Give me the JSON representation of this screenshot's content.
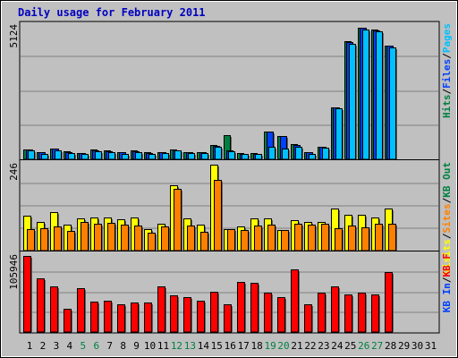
{
  "colors": {
    "background": "#C0C0C0",
    "frame_light": "#FFFFFF",
    "frame_dark": "#808080",
    "grid": "#808080",
    "title": "#0000C0",
    "hits": "#008040",
    "files": "#0040FF",
    "pages": "#00C0FF",
    "visits": "#FFFF00",
    "sites": "#FF8000",
    "kb_out": "#008040",
    "kb_in": "#0040FF",
    "kb_f": "#FF0000",
    "day_weekday": "#000000",
    "day_weekend": "#008040",
    "separator": "#000000"
  },
  "chart_data": {
    "type": "bar",
    "title": "Daily usage for February 2011",
    "categories": [
      "1",
      "2",
      "3",
      "4",
      "5",
      "6",
      "7",
      "8",
      "9",
      "10",
      "11",
      "12",
      "13",
      "14",
      "15",
      "16",
      "17",
      "18",
      "19",
      "20",
      "21",
      "22",
      "23",
      "24",
      "25",
      "26",
      "27",
      "28",
      "29",
      "30",
      "31"
    ],
    "weekend_days": [
      "5",
      "6",
      "12",
      "13",
      "19",
      "20",
      "26",
      "27"
    ],
    "panels": [
      {
        "id": "top",
        "max_label": "5124",
        "ymax": 5124,
        "legend": [
          {
            "text": "Hits",
            "color_key": "hits"
          },
          {
            "text": "/",
            "color_key": "separator"
          },
          {
            "text": "Files",
            "color_key": "files"
          },
          {
            "text": "/",
            "color_key": "separator"
          },
          {
            "text": "Pages",
            "color_key": "pages"
          }
        ],
        "series": [
          {
            "name": "Hits",
            "color_key": "hits",
            "values": [
              390,
              280,
              420,
              300,
              250,
              380,
              330,
              280,
              330,
              270,
              280,
              380,
              290,
              280,
              540,
              940,
              240,
              230,
              1060,
              880,
              580,
              280,
              490,
              2000,
              4550,
              5060,
              4980,
              4380,
              0,
              0,
              0
            ]
          },
          {
            "name": "Files",
            "color_key": "files",
            "values": [
              370,
              260,
              400,
              280,
              240,
              360,
              310,
              260,
              310,
              250,
              260,
              360,
              270,
              260,
              520,
              350,
              220,
              210,
              1060,
              880,
              560,
              260,
              470,
              1980,
              4500,
              5040,
              4960,
              4360,
              0,
              0,
              0
            ]
          },
          {
            "name": "Pages",
            "color_key": "pages",
            "values": [
              330,
              220,
              350,
              240,
              200,
              320,
              270,
              220,
              280,
              220,
              230,
              330,
              240,
              230,
              480,
              320,
              200,
              190,
              470,
              400,
              480,
              220,
              450,
              1950,
              4450,
              5000,
              4910,
              4300,
              0,
              0,
              0
            ]
          }
        ]
      },
      {
        "id": "middle",
        "max_label": "246",
        "ymax": 246,
        "legend": [
          {
            "text": "Visits",
            "color_key": "visits"
          },
          {
            "text": "/",
            "color_key": "separator"
          },
          {
            "text": "Sites",
            "color_key": "sites"
          },
          {
            "text": "/",
            "color_key": "separator"
          },
          {
            "text": "KB Out",
            "color_key": "kb_out"
          }
        ],
        "series": [
          {
            "name": "Visits",
            "color_key": "visits",
            "values": [
              100,
              83,
              111,
              74,
              93,
              94,
              95,
              89,
              96,
              62,
              78,
              186,
              93,
              74,
              246,
              62,
              70,
              91,
              91,
              60,
              87,
              81,
              81,
              121,
              102,
              103,
              95,
              121,
              0,
              0,
              0
            ]
          },
          {
            "name": "Sites",
            "color_key": "sites",
            "values": [
              62,
              65,
              68,
              57,
              82,
              76,
              80,
              74,
              72,
              51,
              68,
              176,
              73,
              53,
              203,
              62,
              60,
              72,
              75,
              58,
              76,
              75,
              78,
              64,
              71,
              66,
              76,
              76,
              0,
              0,
              0
            ]
          }
        ]
      },
      {
        "id": "bottom",
        "max_label": "105946",
        "ymax": 105946,
        "legend": [
          {
            "text": "KB In",
            "color_key": "kb_in"
          },
          {
            "text": "/",
            "color_key": "separator"
          },
          {
            "text": "KB F",
            "color_key": "kb_f"
          }
        ],
        "series": [
          {
            "name": "KB F",
            "color_key": "kb_f",
            "values": [
              105946,
              75000,
              63000,
              33000,
              61000,
              42000,
              44000,
              39000,
              41000,
              41000,
              64000,
              51000,
              48000,
              44000,
              56000,
              39000,
              70000,
              68000,
              55000,
              48000,
              87000,
              39000,
              55000,
              63000,
              52000,
              55000,
              52000,
              84000,
              0,
              0,
              0
            ]
          }
        ]
      }
    ]
  }
}
